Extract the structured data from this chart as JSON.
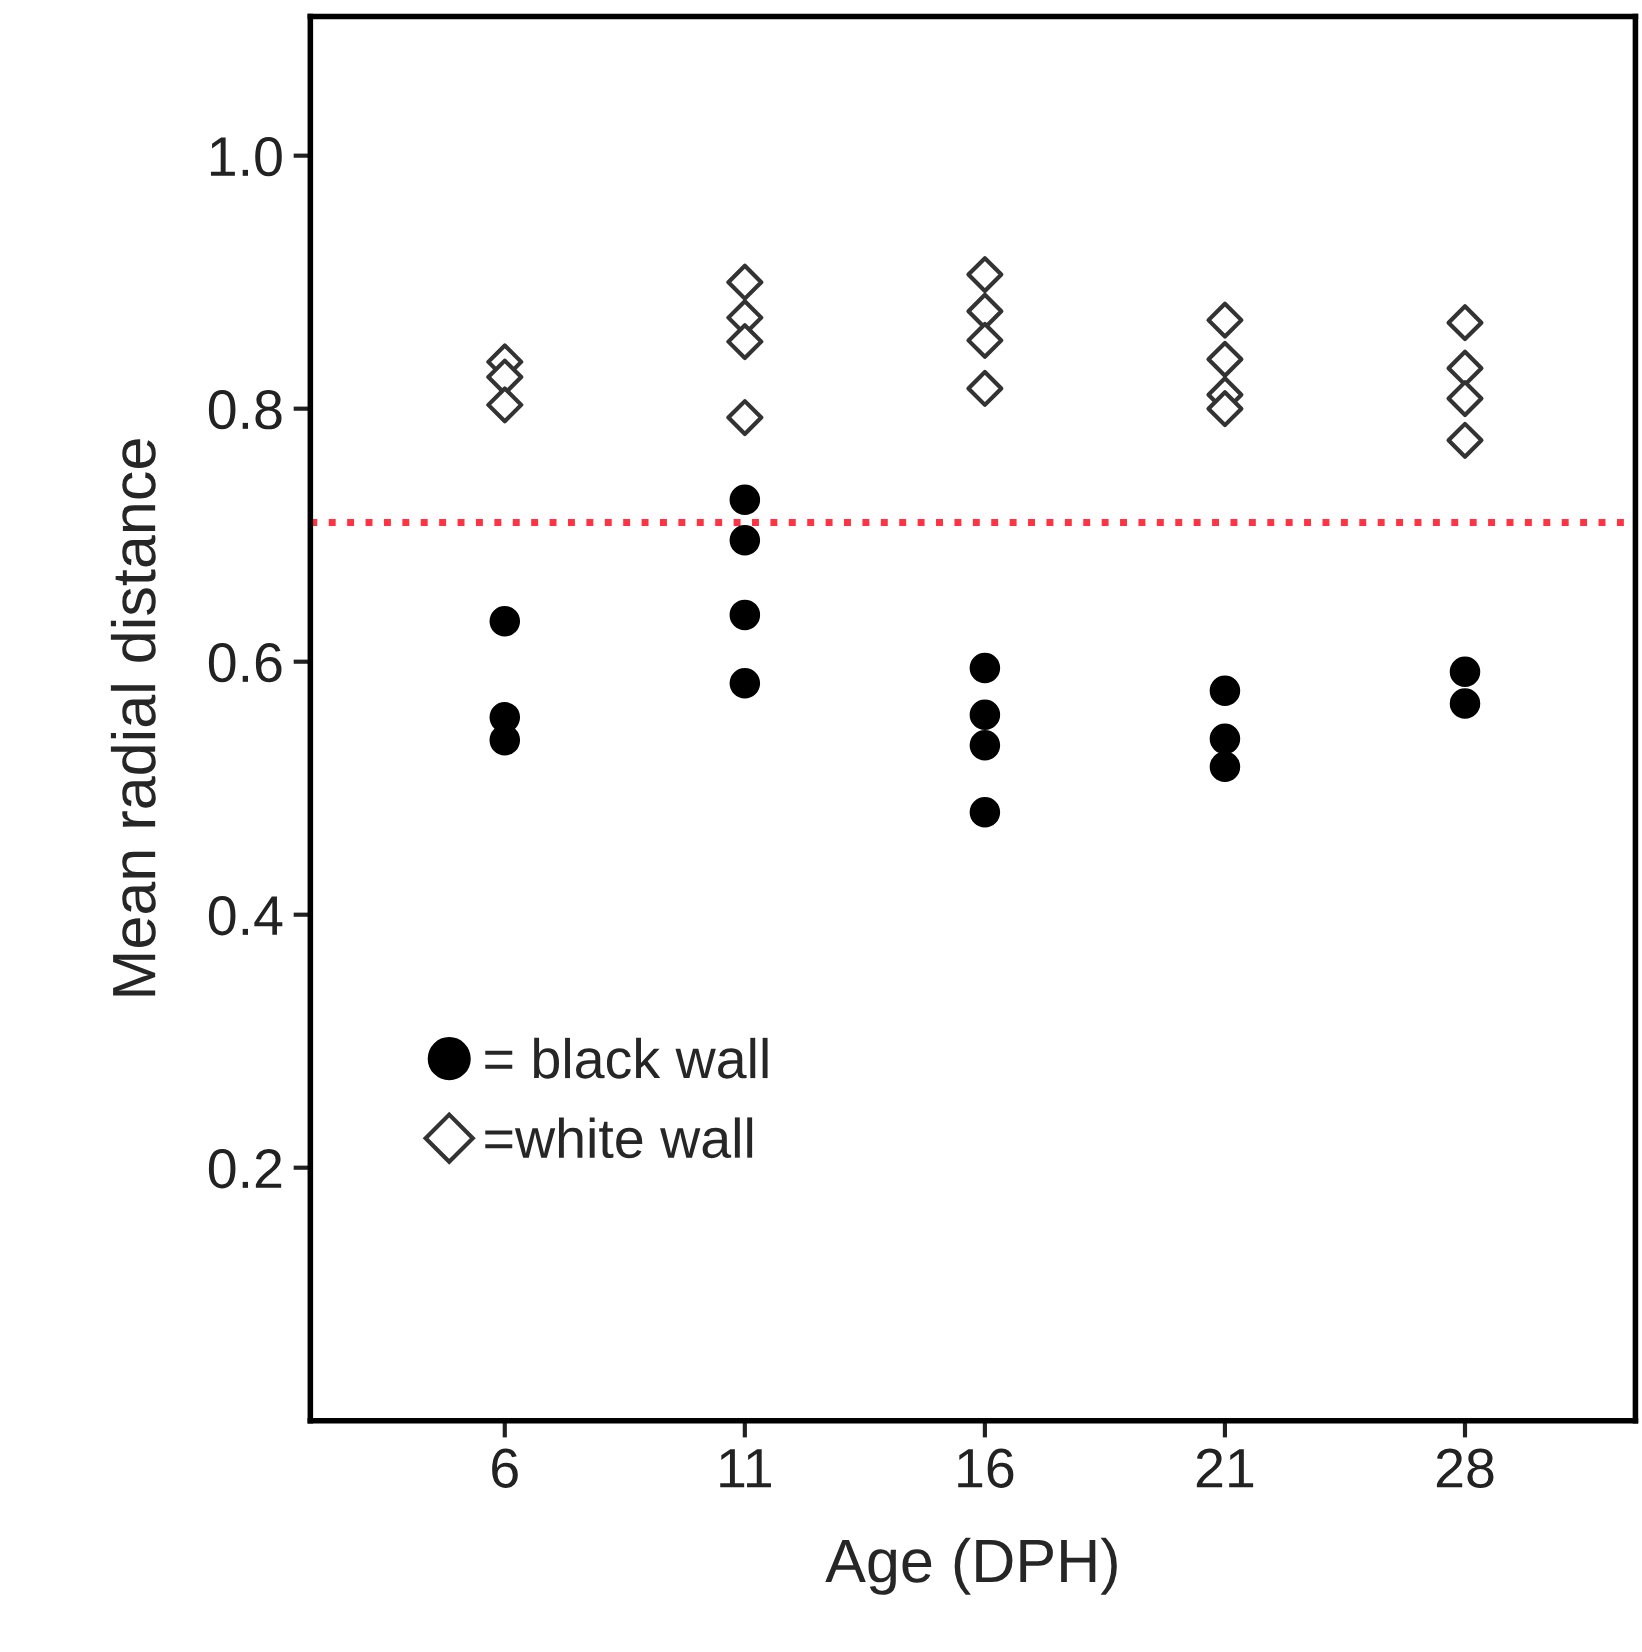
{
  "chart_data": {
    "type": "scatter",
    "xlabel": "Age (DPH)",
    "ylabel": "Mean radial distance",
    "categories": [
      "6",
      "11",
      "16",
      "21",
      "28"
    ],
    "series": [
      {
        "name": "= black wall",
        "color": "#000000",
        "marker": "circle",
        "x": [
          "6",
          "6",
          "6",
          "11",
          "11",
          "11",
          "11",
          "16",
          "16",
          "16",
          "16",
          "21",
          "21",
          "21",
          "28",
          "28"
        ],
        "values": [
          0.632,
          0.556,
          0.538,
          0.728,
          0.696,
          0.637,
          0.583,
          0.595,
          0.558,
          0.534,
          0.481,
          0.577,
          0.539,
          0.517,
          0.592,
          0.567
        ]
      },
      {
        "name": "=white wall",
        "color": "#ffffff",
        "marker": "diamond",
        "x": [
          "6",
          "6",
          "6",
          "11",
          "11",
          "11",
          "11",
          "16",
          "16",
          "16",
          "16",
          "21",
          "21",
          "21",
          "21",
          "28",
          "28",
          "28",
          "28"
        ],
        "values": [
          0.837,
          0.825,
          0.803,
          0.9,
          0.872,
          0.853,
          0.793,
          0.906,
          0.877,
          0.854,
          0.816,
          0.87,
          0.839,
          0.811,
          0.8,
          0.868,
          0.832,
          0.808,
          0.775
        ]
      }
    ],
    "ylim": [
      0,
      1.11
    ],
    "yticks": [
      0.2,
      0.4,
      0.6,
      0.8,
      {
        "value": 1.0,
        "label": "1.0"
      }
    ],
    "ref_lines": [
      {
        "axis": "y",
        "value": 0.71,
        "color": "#ff3344",
        "line_style": "dotted"
      }
    ],
    "legend": "bottom left",
    "grid": false
  }
}
